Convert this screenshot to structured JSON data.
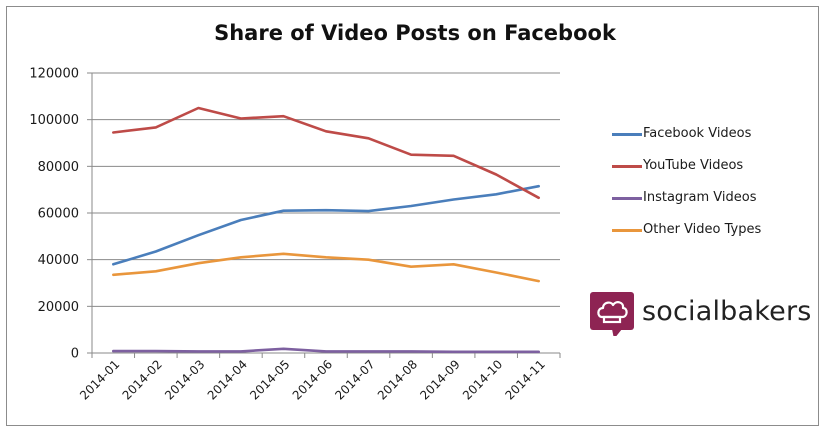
{
  "chart_data": {
    "type": "line",
    "title": "Share of Video Posts on Facebook",
    "xlabel": "",
    "ylabel": "",
    "ylim": [
      0,
      120000
    ],
    "yticks": [
      "0",
      "20000",
      "40000",
      "60000",
      "80000",
      "100000",
      "120000"
    ],
    "categories": [
      "2014-01",
      "2014-02",
      "2014-03",
      "2014-04",
      "2014-05",
      "2014-06",
      "2014-07",
      "2014-08",
      "2014-09",
      "2014-10",
      "2014-11"
    ],
    "grid": true,
    "legend_position": "right",
    "series": [
      {
        "name": "Facebook Videos",
        "color": "#4a7ebb",
        "values": [
          38000,
          43500,
          50500,
          57000,
          61000,
          61200,
          60800,
          63000,
          65800,
          68000,
          71500
        ]
      },
      {
        "name": "YouTube Videos",
        "color": "#be4b48",
        "values": [
          94500,
          96700,
          105000,
          100500,
          101500,
          95000,
          92000,
          85000,
          84500,
          76500,
          66500
        ]
      },
      {
        "name": "Instagram Videos",
        "color": "#7d60a0",
        "values": [
          800,
          800,
          700,
          700,
          1800,
          700,
          700,
          700,
          500,
          500,
          500
        ]
      },
      {
        "name": "Other Video Types",
        "color": "#e9963c",
        "values": [
          33500,
          35000,
          38500,
          41000,
          42500,
          41000,
          40000,
          37000,
          38000,
          34500,
          30800
        ]
      }
    ]
  },
  "brand": {
    "name": "socialbakers",
    "icon": "chef-hat-speech-bubble-icon",
    "color": "#8e2453"
  }
}
